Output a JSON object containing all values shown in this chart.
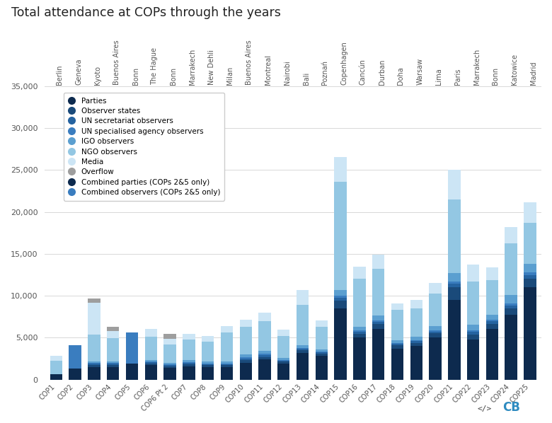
{
  "title": "Total attendance at COPs through the years",
  "cops": [
    "COP1",
    "COP2",
    "COP3",
    "COP4",
    "COP5",
    "COP6",
    "COP6 Pt 2",
    "COP7",
    "COP8",
    "COP9",
    "COP10",
    "COP11",
    "COP12",
    "COP13",
    "COP14",
    "COP15",
    "COP16",
    "COP17",
    "COP18",
    "COP19",
    "COP20",
    "COP21",
    "COP22",
    "COP23",
    "COP24",
    "COP25"
  ],
  "cities": [
    "Berlin",
    "Geneva",
    "Kyoto",
    "Buenos Aires",
    "Bonn",
    "The Hague",
    "Bonn",
    "Marrakech",
    "New Dehli",
    "Milan",
    "Buenos Aires",
    "Montreal",
    "Nairobi",
    "Bali",
    "Poznań",
    "Copenhagen",
    "Cancún",
    "Durban",
    "Doha",
    "Warsaw",
    "Lima",
    "Paris",
    "Marrakech",
    "Bonn",
    "Katowice",
    "Madrid"
  ],
  "parties": [
    650,
    0,
    1500,
    1500,
    0,
    1700,
    1400,
    1600,
    1500,
    1500,
    2000,
    2400,
    1900,
    3200,
    2800,
    8500,
    5000,
    6000,
    3700,
    4000,
    5000,
    9500,
    4800,
    6000,
    7700,
    11000
  ],
  "observer_states": [
    0,
    0,
    200,
    220,
    0,
    200,
    180,
    210,
    200,
    210,
    280,
    250,
    220,
    320,
    260,
    900,
    480,
    610,
    360,
    390,
    490,
    1500,
    570,
    620,
    750,
    1050
  ],
  "un_secretariat": [
    0,
    0,
    220,
    160,
    0,
    150,
    120,
    150,
    120,
    130,
    200,
    230,
    130,
    150,
    155,
    370,
    230,
    300,
    185,
    180,
    230,
    470,
    290,
    305,
    375,
    430
  ],
  "un_agency": [
    0,
    0,
    90,
    95,
    0,
    100,
    95,
    125,
    90,
    100,
    150,
    170,
    100,
    115,
    115,
    195,
    140,
    175,
    105,
    125,
    155,
    250,
    185,
    200,
    255,
    295
  ],
  "igo": [
    0,
    0,
    140,
    175,
    0,
    160,
    190,
    255,
    230,
    255,
    350,
    400,
    260,
    320,
    295,
    720,
    470,
    590,
    340,
    380,
    480,
    980,
    670,
    635,
    1005,
    1010
  ],
  "ngo": [
    1600,
    0,
    3200,
    2800,
    0,
    2800,
    2200,
    2400,
    2400,
    3400,
    3300,
    3500,
    2600,
    4800,
    2700,
    12900,
    5700,
    5500,
    3600,
    3400,
    3900,
    8800,
    5200,
    4100,
    6200,
    4900
  ],
  "media": [
    600,
    0,
    3800,
    850,
    0,
    900,
    700,
    700,
    650,
    800,
    850,
    1000,
    750,
    1800,
    750,
    3000,
    1450,
    1700,
    800,
    980,
    1300,
    3500,
    2000,
    1500,
    1900,
    2500
  ],
  "overflow": [
    0,
    0,
    500,
    500,
    0,
    0,
    600,
    0,
    0,
    0,
    0,
    0,
    0,
    0,
    0,
    0,
    0,
    0,
    0,
    0,
    0,
    0,
    0,
    0,
    0,
    0
  ],
  "combined_parties": [
    0,
    1300,
    0,
    0,
    1900,
    0,
    0,
    0,
    0,
    0,
    0,
    0,
    0,
    0,
    0,
    0,
    0,
    0,
    0,
    0,
    0,
    0,
    0,
    0,
    0,
    0
  ],
  "combined_observers": [
    0,
    2800,
    0,
    0,
    3700,
    0,
    0,
    0,
    0,
    0,
    0,
    0,
    0,
    0,
    0,
    0,
    0,
    0,
    0,
    0,
    0,
    0,
    0,
    0,
    0,
    0
  ],
  "colors": {
    "parties": "#0d2a4e",
    "observer_states": "#1a4a7a",
    "un_secretariat": "#2563a0",
    "un_agency": "#3a7dbf",
    "igo": "#5b9fd0",
    "ngo": "#93c7e3",
    "media": "#cce5f5",
    "overflow": "#9e9e9e",
    "combined_parties": "#0d2a4e",
    "combined_observers": "#3a7dbf"
  },
  "ylim": [
    0,
    35000
  ],
  "yticks": [
    0,
    5000,
    10000,
    15000,
    20000,
    25000,
    30000,
    35000
  ],
  "legend_labels": [
    "Parties",
    "Observer states",
    "UN secretariat observers",
    "UN specialised agency observers",
    "IGO observers",
    "NGO observers",
    "Media",
    "Overflow",
    "Combined parties (COPs 2&5 only)",
    "Combined observers (COPs 2&5 only)"
  ],
  "background_color": "#ffffff"
}
